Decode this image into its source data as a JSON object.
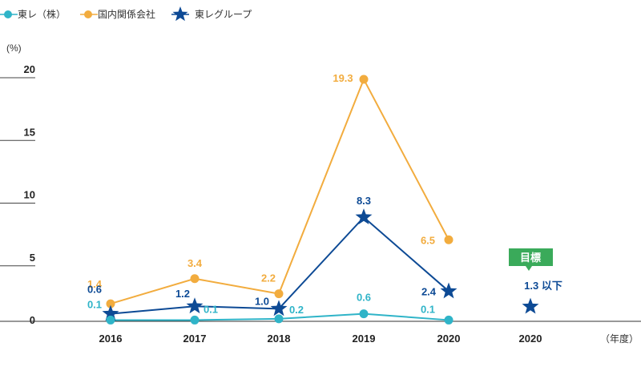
{
  "chart_data": {
    "type": "line",
    "categories": [
      "2016",
      "2017",
      "2018",
      "2019",
      "2020"
    ],
    "target_category": "2020",
    "y_unit_label": "(%)",
    "x_unit_label": "（年度）",
    "ylim": [
      0,
      20
    ],
    "yticks": [
      0,
      5,
      10,
      15,
      20
    ],
    "ytick_labels": [
      "0",
      "5",
      "10",
      "15",
      "20"
    ],
    "grid": true,
    "legend_position": "top-left",
    "series": [
      {
        "name": "東レ（株）",
        "color": "#2fb4c8",
        "marker": "circle",
        "values": [
          0.1,
          0.1,
          0.2,
          0.6,
          0.1
        ],
        "labels": [
          "0.1",
          "0.1",
          "0.2",
          "0.6",
          "0.1"
        ]
      },
      {
        "name": "国内関係会社",
        "color": "#f2ac3e",
        "marker": "circle",
        "values": [
          1.4,
          3.4,
          2.2,
          19.3,
          6.5
        ],
        "labels": [
          "1.4",
          "3.4",
          "2.2",
          "19.3",
          "6.5"
        ]
      },
      {
        "name": "東レグループ",
        "color": "#0d4a95",
        "marker": "star",
        "values": [
          0.6,
          1.2,
          1.0,
          8.3,
          2.4
        ],
        "labels": [
          "0.6",
          "1.2",
          "1.0",
          "8.3",
          "2.4"
        ]
      }
    ],
    "target": {
      "badge_text": "目標",
      "badge_color": "#3aaa5a",
      "value": 1.3,
      "label": "1.3 以下",
      "color": "#0d4a95"
    }
  }
}
